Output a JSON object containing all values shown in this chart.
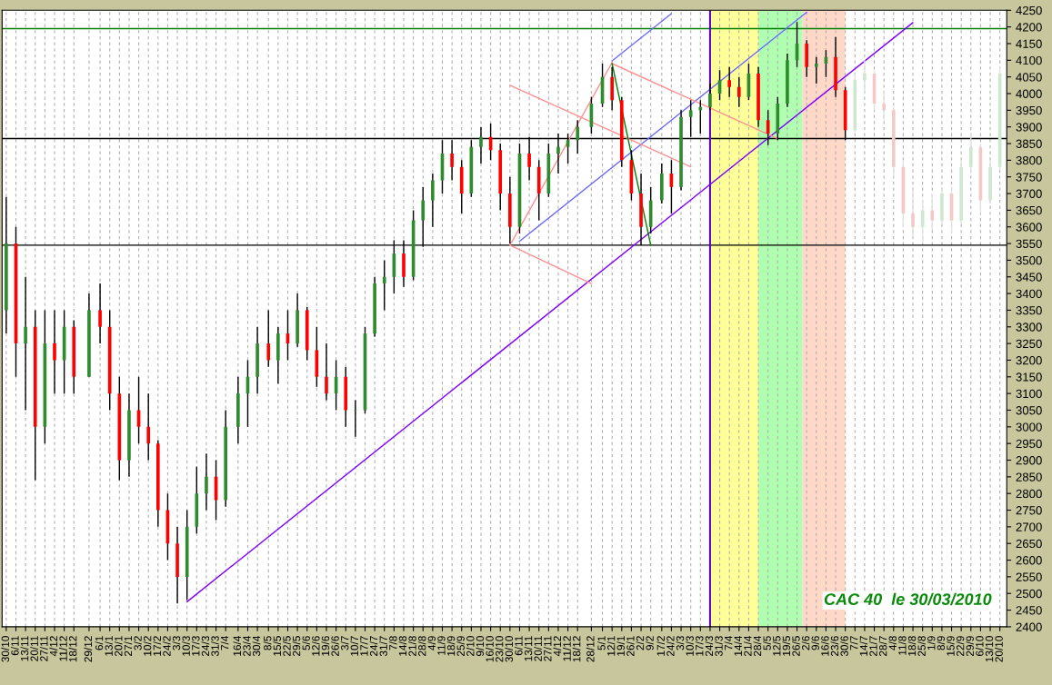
{
  "chart_data": {
    "type": "candlestick",
    "x": [
      "2008-10-30",
      "2008-11-06",
      "2008-11-13",
      "2008-11-20",
      "2008-11-27",
      "2008-12-04",
      "2008-12-11",
      "2008-12-18",
      "2008-12-29",
      "2009-01-06",
      "2009-01-13",
      "2009-01-20",
      "2009-01-27",
      "2009-02-03",
      "2009-02-10",
      "2009-02-17",
      "2009-02-24",
      "2009-03-03",
      "2009-03-10",
      "2009-03-17",
      "2009-03-24",
      "2009-03-31",
      "2009-04-07",
      "2009-04-16",
      "2009-04-23",
      "2009-04-30",
      "2009-05-08",
      "2009-05-15",
      "2009-05-22",
      "2009-05-29",
      "2009-06-05",
      "2009-06-12",
      "2009-06-19",
      "2009-06-26",
      "2009-07-03",
      "2009-07-10",
      "2009-07-17",
      "2009-07-24",
      "2009-07-31",
      "2009-08-07",
      "2009-08-14",
      "2009-08-21",
      "2009-08-28",
      "2009-09-04",
      "2009-09-11",
      "2009-09-18",
      "2009-09-25",
      "2009-10-02",
      "2009-10-09",
      "2009-10-16",
      "2009-10-23",
      "2009-10-30",
      "2009-11-06",
      "2009-11-13",
      "2009-11-20",
      "2009-11-27",
      "2009-12-04",
      "2009-12-11",
      "2009-12-18",
      "2009-12-28",
      "2010-01-05",
      "2010-01-12",
      "2010-01-19",
      "2010-01-26",
      "2010-02-02",
      "2010-02-09",
      "2010-02-17",
      "2010-02-24",
      "2010-03-03",
      "2010-03-10",
      "2010-03-17",
      "2010-03-24",
      "2010-03-31",
      "2010-04-07",
      "2010-04-14",
      "2010-04-21",
      "2010-04-28",
      "2010-05-05",
      "2010-05-12",
      "2010-05-19",
      "2010-05-26",
      "2010-06-02",
      "2010-06-09",
      "2010-06-16",
      "2010-06-23",
      "2010-06-30"
    ],
    "series": [
      {
        "color": "#000000",
        "colors": [
          "#2e8b2e",
          "#ff0000",
          "#2e8b2e",
          "#ff0000",
          "#2e8b2e",
          "#ff0000",
          "#2e8b2e",
          "#ff0000",
          "#2e8b2e",
          "#ff0000",
          "#ff0000",
          "#ff0000",
          "#2e8b2e",
          "#ff0000",
          "#ff0000",
          "#ff0000",
          "#ff0000",
          "#ff0000",
          "#2e8b2e",
          "#2e8b2e",
          "#2e8b2e",
          "#ff0000",
          "#2e8b2e",
          "#2e8b2e",
          "#2e8b2e",
          "#2e8b2e",
          "#ff0000",
          "#2e8b2e",
          "#ff0000",
          "#2e8b2e",
          "#ff0000",
          "#ff0000",
          "#ff0000",
          "#2e8b2e",
          "#ff0000",
          "#2e8b2e",
          "#2e8b2e",
          "#2e8b2e",
          "#2e8b2e",
          "#2e8b2e",
          "#ff0000",
          "#2e8b2e",
          "#2e8b2e",
          "#2e8b2e",
          "#2e8b2e",
          "#ff0000",
          "#ff0000",
          "#2e8b2e",
          "#2e8b2e",
          "#ff0000",
          "#ff0000",
          "#ff0000",
          "#2e8b2e",
          "#ff0000",
          "#ff0000",
          "#2e8b2e",
          "#2e8b2e",
          "#2e8b2e",
          "#2e8b2e",
          "#2e8b2e",
          "#2e8b2e",
          "#ff0000",
          "#ff0000",
          "#ff0000",
          "#ff0000",
          "#2e8b2e",
          "#2e8b2e",
          "#ff0000",
          "#2e8b2e",
          "#2e8b2e",
          "#2e8b2e",
          "#2e8b2e",
          "#2e8b2e",
          "#ff0000",
          "#ff0000",
          "#2e8b2e",
          "#ff0000",
          "#ff0000",
          "#2e8b2e",
          "#2e8b2e",
          "#2e8b2e",
          "#ff0000",
          "#2e8b2e",
          "#2e8b2e",
          "#ff0000",
          "#ff0000"
        ],
        "ohlc": [
          [
            3350,
            3690,
            3280,
            3550
          ],
          [
            3550,
            3600,
            3150,
            3250
          ],
          [
            3250,
            3450,
            3050,
            3300
          ],
          [
            3300,
            3350,
            2840,
            3000
          ],
          [
            3000,
            3350,
            2950,
            3250
          ],
          [
            3250,
            3350,
            3100,
            3200
          ],
          [
            3200,
            3350,
            3100,
            3300
          ],
          [
            3300,
            3320,
            3100,
            3150
          ],
          [
            3150,
            3400,
            3150,
            3350
          ],
          [
            3350,
            3430,
            3250,
            3300
          ],
          [
            3300,
            3350,
            3050,
            3100
          ],
          [
            3100,
            3150,
            2840,
            2900
          ],
          [
            2900,
            3100,
            2850,
            3050
          ],
          [
            3050,
            3150,
            2950,
            3000
          ],
          [
            3000,
            3100,
            2900,
            2950
          ],
          [
            2950,
            2960,
            2700,
            2750
          ],
          [
            2750,
            2800,
            2600,
            2650
          ],
          [
            2650,
            2700,
            2470,
            2550
          ],
          [
            2550,
            2750,
            2480,
            2700
          ],
          [
            2700,
            2880,
            2680,
            2800
          ],
          [
            2800,
            2920,
            2750,
            2850
          ],
          [
            2850,
            2900,
            2720,
            2780
          ],
          [
            2780,
            3050,
            2760,
            3000
          ],
          [
            3000,
            3150,
            2950,
            3100
          ],
          [
            3100,
            3200,
            3000,
            3150
          ],
          [
            3150,
            3300,
            3100,
            3250
          ],
          [
            3250,
            3350,
            3180,
            3200
          ],
          [
            3200,
            3300,
            3130,
            3280
          ],
          [
            3280,
            3350,
            3200,
            3250
          ],
          [
            3250,
            3400,
            3240,
            3350
          ],
          [
            3350,
            3360,
            3200,
            3230
          ],
          [
            3230,
            3300,
            3120,
            3150
          ],
          [
            3150,
            3250,
            3080,
            3100
          ],
          [
            3100,
            3200,
            3050,
            3150
          ],
          [
            3150,
            3180,
            3000,
            3050
          ],
          [
            3050,
            3080,
            2970,
            3050
          ],
          [
            3050,
            3300,
            3040,
            3280
          ],
          [
            3280,
            3450,
            3270,
            3430
          ],
          [
            3430,
            3500,
            3350,
            3450
          ],
          [
            3450,
            3560,
            3400,
            3520
          ],
          [
            3520,
            3560,
            3420,
            3450
          ],
          [
            3450,
            3650,
            3440,
            3620
          ],
          [
            3620,
            3720,
            3540,
            3680
          ],
          [
            3680,
            3760,
            3600,
            3740
          ],
          [
            3740,
            3860,
            3700,
            3820
          ],
          [
            3820,
            3860,
            3740,
            3780
          ],
          [
            3780,
            3800,
            3640,
            3700
          ],
          [
            3700,
            3860,
            3690,
            3840
          ],
          [
            3840,
            3900,
            3790,
            3870
          ],
          [
            3870,
            3910,
            3800,
            3830
          ],
          [
            3830,
            3850,
            3650,
            3700
          ],
          [
            3700,
            3750,
            3550,
            3600
          ],
          [
            3600,
            3850,
            3580,
            3820
          ],
          [
            3820,
            3870,
            3740,
            3780
          ],
          [
            3780,
            3800,
            3620,
            3700
          ],
          [
            3700,
            3850,
            3690,
            3820
          ],
          [
            3820,
            3880,
            3760,
            3840
          ],
          [
            3840,
            3880,
            3790,
            3860
          ],
          [
            3860,
            3920,
            3820,
            3900
          ],
          [
            3900,
            3990,
            3880,
            3970
          ],
          [
            3970,
            4090,
            3960,
            4050
          ],
          [
            4050,
            4080,
            3950,
            3980
          ],
          [
            3980,
            3990,
            3780,
            3800
          ],
          [
            3800,
            3830,
            3680,
            3700
          ],
          [
            3700,
            3760,
            3545,
            3600
          ],
          [
            3600,
            3720,
            3580,
            3680
          ],
          [
            3680,
            3790,
            3670,
            3760
          ],
          [
            3760,
            3800,
            3640,
            3720
          ],
          [
            3720,
            3950,
            3710,
            3930
          ],
          [
            3930,
            3980,
            3870,
            3950
          ],
          [
            3950,
            3980,
            3880,
            3960
          ],
          [
            3960,
            4030,
            3950,
            4000
          ],
          [
            4000,
            4070,
            3980,
            4040
          ],
          [
            4040,
            4080,
            3990,
            4020
          ],
          [
            4020,
            4050,
            3960,
            3990
          ],
          [
            3990,
            4090,
            3980,
            4060
          ],
          [
            4060,
            4080,
            3900,
            3920
          ],
          [
            3920,
            3950,
            3845,
            3880
          ],
          [
            3880,
            3990,
            3860,
            3970
          ],
          [
            3970,
            4120,
            3960,
            4100
          ],
          [
            4100,
            4215,
            4080,
            4150
          ],
          [
            4150,
            4160,
            4050,
            4080
          ],
          [
            4080,
            4110,
            4030,
            4090
          ],
          [
            4090,
            4130,
            4050,
            4110
          ],
          [
            4110,
            4170,
            3990,
            4010
          ],
          [
            4010,
            4020,
            3860,
            3890
          ]
        ]
      },
      {
        "color": "#e2e2e2",
        "x": [
          "2010-07-07",
          "2010-07-14",
          "2010-07-21",
          "2010-07-28",
          "2010-08-04",
          "2010-08-11",
          "2010-08-18",
          "2010-08-25",
          "2010-09-01",
          "2010-09-08",
          "2010-09-15",
          "2010-09-22",
          "2010-09-29",
          "2010-10-06",
          "2010-10-13",
          "2010-10-20"
        ],
        "colors": [
          "#cfe6cf",
          "#cfe6cf",
          "#f5c8c8",
          "#f5c8c8",
          "#f5c8c8",
          "#f5c8c8",
          "#f5c8c8",
          "#cfe6cf",
          "#f5c8c8",
          "#cfe6cf",
          "#f5c8c8",
          "#cfe6cf",
          "#cfe6cf",
          "#f5c8c8",
          "#cfe6cf",
          "#cfe6cf"
        ],
        "ohlc": [
          [
            3890,
            4060,
            3880,
            4040
          ],
          [
            4040,
            4100,
            4000,
            4060
          ],
          [
            4060,
            4070,
            3950,
            3970
          ],
          [
            3970,
            4010,
            3920,
            3950
          ],
          [
            3950,
            3960,
            3750,
            3780
          ],
          [
            3780,
            3800,
            3600,
            3640
          ],
          [
            3640,
            3720,
            3570,
            3600
          ],
          [
            3600,
            3680,
            3550,
            3650
          ],
          [
            3650,
            3700,
            3590,
            3620
          ],
          [
            3620,
            3720,
            3610,
            3700
          ],
          [
            3700,
            3720,
            3580,
            3620
          ],
          [
            3620,
            3800,
            3610,
            3780
          ],
          [
            3780,
            3880,
            3760,
            3840
          ],
          [
            3840,
            3850,
            3640,
            3680
          ],
          [
            3680,
            3800,
            3670,
            3780
          ],
          [
            3780,
            4080,
            3770,
            4060
          ]
        ]
      },
      {
        "type": "line",
        "color": "#8000ff",
        "x": [
          "2009-03-10",
          "2010-08-18"
        ],
        "values": [
          2475,
          4213
        ]
      },
      {
        "type": "line",
        "color": "#6a6aff",
        "x": [
          "2009-11-06",
          "2010-06-02"
        ],
        "values": [
          3557,
          4244
        ]
      },
      {
        "type": "line",
        "color": "#6a6aff",
        "x": [
          "2010-01-12",
          "2010-02-24"
        ],
        "values": [
          4098,
          4240
        ]
      },
      {
        "type": "line",
        "color": "#ff9090",
        "x": [
          "2009-10-30",
          "2010-01-12"
        ],
        "values": [
          3545,
          4093
        ]
      },
      {
        "type": "line",
        "color": "#ff9090",
        "x": [
          "2010-01-12",
          "2010-05-12"
        ],
        "values": [
          4090,
          3865
        ]
      },
      {
        "type": "line",
        "color": "#ff9090",
        "x": [
          "2009-10-30",
          "2010-03-10"
        ],
        "values": [
          4025,
          3780
        ]
      },
      {
        "type": "line",
        "color": "#ff9090",
        "x": [
          "2009-10-30",
          "2009-12-28"
        ],
        "values": [
          3545,
          3430
        ]
      },
      {
        "type": "line",
        "color": "#008000",
        "x": [
          "2010-01-12",
          "2010-02-09"
        ],
        "values": [
          4090,
          3545
        ]
      }
    ],
    "xlim": [
      "2008-10-27",
      "2010-10-25"
    ],
    "xticks": [
      {
        "value": "2008-10-30",
        "label": "30/10"
      },
      {
        "value": "2008-11-06",
        "label": "6/11"
      },
      {
        "value": "2008-11-13",
        "label": "13/11"
      },
      {
        "value": "2008-11-20",
        "label": "20/11"
      },
      {
        "value": "2008-11-27",
        "label": "27/11"
      },
      {
        "value": "2008-12-04",
        "label": "4/12"
      },
      {
        "value": "2008-12-11",
        "label": "11/12"
      },
      {
        "value": "2008-12-18",
        "label": "18/12"
      },
      {
        "value": "2008-12-29",
        "label": "29/12"
      },
      {
        "value": "2009-01-06",
        "label": "6/1"
      },
      {
        "value": "2009-01-13",
        "label": "13/1"
      },
      {
        "value": "2009-01-20",
        "label": "20/1"
      },
      {
        "value": "2009-01-27",
        "label": "27/1"
      },
      {
        "value": "2009-02-03",
        "label": "3/2"
      },
      {
        "value": "2009-02-10",
        "label": "10/2"
      },
      {
        "value": "2009-02-17",
        "label": "17/2"
      },
      {
        "value": "2009-02-24",
        "label": "24/2"
      },
      {
        "value": "2009-03-03",
        "label": "3/3"
      },
      {
        "value": "2009-03-10",
        "label": "10/3"
      },
      {
        "value": "2009-03-17",
        "label": "17/3"
      },
      {
        "value": "2009-03-24",
        "label": "24/3"
      },
      {
        "value": "2009-03-31",
        "label": "31/3"
      },
      {
        "value": "2009-04-07",
        "label": "7/4"
      },
      {
        "value": "2009-04-16",
        "label": "16/4"
      },
      {
        "value": "2009-04-23",
        "label": "23/4"
      },
      {
        "value": "2009-04-30",
        "label": "30/4"
      },
      {
        "value": "2009-05-08",
        "label": "8/5"
      },
      {
        "value": "2009-05-15",
        "label": "15/5"
      },
      {
        "value": "2009-05-22",
        "label": "22/5"
      },
      {
        "value": "2009-05-29",
        "label": "29/5"
      },
      {
        "value": "2009-06-05",
        "label": "5/6"
      },
      {
        "value": "2009-06-12",
        "label": "12/6"
      },
      {
        "value": "2009-06-19",
        "label": "19/6"
      },
      {
        "value": "2009-06-26",
        "label": "26/6"
      },
      {
        "value": "2009-07-03",
        "label": "3/7"
      },
      {
        "value": "2009-07-10",
        "label": "10/7"
      },
      {
        "value": "2009-07-17",
        "label": "17/7"
      },
      {
        "value": "2009-07-24",
        "label": "24/7"
      },
      {
        "value": "2009-07-31",
        "label": "31/7"
      },
      {
        "value": "2009-08-07",
        "label": "7/8"
      },
      {
        "value": "2009-08-14",
        "label": "14/8"
      },
      {
        "value": "2009-08-21",
        "label": "21/8"
      },
      {
        "value": "2009-08-28",
        "label": "28/8"
      },
      {
        "value": "2009-09-04",
        "label": "4/9"
      },
      {
        "value": "2009-09-11",
        "label": "11/9"
      },
      {
        "value": "2009-09-18",
        "label": "18/9"
      },
      {
        "value": "2009-09-25",
        "label": "25/9"
      },
      {
        "value": "2009-10-02",
        "label": "2/10"
      },
      {
        "value": "2009-10-09",
        "label": "9/10"
      },
      {
        "value": "2009-10-16",
        "label": "16/10"
      },
      {
        "value": "2009-10-23",
        "label": "23/10"
      },
      {
        "value": "2009-10-30",
        "label": "30/10"
      },
      {
        "value": "2009-11-06",
        "label": "6/11"
      },
      {
        "value": "2009-11-13",
        "label": "13/11"
      },
      {
        "value": "2009-11-20",
        "label": "20/11"
      },
      {
        "value": "2009-11-27",
        "label": "27/11"
      },
      {
        "value": "2009-12-04",
        "label": "4/12"
      },
      {
        "value": "2009-12-11",
        "label": "11/12"
      },
      {
        "value": "2009-12-18",
        "label": "18/12"
      },
      {
        "value": "2009-12-28",
        "label": "28/12"
      },
      {
        "value": "2010-01-05",
        "label": "5/1"
      },
      {
        "value": "2010-01-12",
        "label": "12/1"
      },
      {
        "value": "2010-01-19",
        "label": "19/1"
      },
      {
        "value": "2010-01-26",
        "label": "26/1"
      },
      {
        "value": "2010-02-02",
        "label": "2/2"
      },
      {
        "value": "2010-02-09",
        "label": "9/2"
      },
      {
        "value": "2010-02-17",
        "label": "17/2"
      },
      {
        "value": "2010-02-24",
        "label": "24/2"
      },
      {
        "value": "2010-03-03",
        "label": "3/3"
      },
      {
        "value": "2010-03-10",
        "label": "10/3"
      },
      {
        "value": "2010-03-17",
        "label": "17/3"
      },
      {
        "value": "2010-03-24",
        "label": "24/3"
      },
      {
        "value": "2010-03-31",
        "label": "31/3"
      },
      {
        "value": "2010-04-07",
        "label": "7/4"
      },
      {
        "value": "2010-04-14",
        "label": "14/4"
      },
      {
        "value": "2010-04-21",
        "label": "21/4"
      },
      {
        "value": "2010-04-28",
        "label": "28/4"
      },
      {
        "value": "2010-05-05",
        "label": "5/5"
      },
      {
        "value": "2010-05-12",
        "label": "12/5"
      },
      {
        "value": "2010-05-19",
        "label": "19/5"
      },
      {
        "value": "2010-05-26",
        "label": "26/5"
      },
      {
        "value": "2010-06-02",
        "label": "2/6"
      },
      {
        "value": "2010-06-09",
        "label": "9/6"
      },
      {
        "value": "2010-06-16",
        "label": "16/6"
      },
      {
        "value": "2010-06-23",
        "label": "23/6"
      },
      {
        "value": "2010-06-30",
        "label": "30/6"
      },
      {
        "value": "2010-07-07",
        "label": "7/7"
      },
      {
        "value": "2010-07-14",
        "label": "14/7"
      },
      {
        "value": "2010-07-21",
        "label": "21/7"
      },
      {
        "value": "2010-07-28",
        "label": "28/7"
      },
      {
        "value": "2010-08-04",
        "label": "4/8"
      },
      {
        "value": "2010-08-11",
        "label": "11/8"
      },
      {
        "value": "2010-08-18",
        "label": "18/8"
      },
      {
        "value": "2010-08-25",
        "label": "25/8"
      },
      {
        "value": "2010-09-01",
        "label": "1/9"
      },
      {
        "value": "2010-09-08",
        "label": "8/9"
      },
      {
        "value": "2010-09-15",
        "label": "15/9"
      },
      {
        "value": "2010-09-22",
        "label": "22/9"
      },
      {
        "value": "2010-09-29",
        "label": "29/9"
      },
      {
        "value": "2010-10-06",
        "label": "6/10"
      },
      {
        "value": "2010-10-13",
        "label": "13/10"
      },
      {
        "value": "2010-10-20",
        "label": "20/10"
      }
    ],
    "ylim": [
      2400,
      4250
    ],
    "yticks": [
      2400,
      2450,
      2500,
      2550,
      2600,
      2650,
      2700,
      2750,
      2800,
      2850,
      2900,
      2950,
      3000,
      3050,
      3100,
      3150,
      3200,
      3250,
      3300,
      3350,
      3400,
      3450,
      3500,
      3550,
      3600,
      3650,
      3700,
      3750,
      3800,
      3850,
      3900,
      3950,
      4000,
      4050,
      4100,
      4150,
      4200,
      4250
    ],
    "ref_lines": [
      {
        "axis": "y",
        "value": 4195,
        "color": "#008000"
      },
      {
        "axis": "y",
        "value": 3865,
        "color": "#000000"
      },
      {
        "axis": "y",
        "value": 3545,
        "color": "#000000"
      },
      {
        "axis": "x",
        "value": "2010-03-24",
        "color": "#6000c0"
      }
    ],
    "bands": [
      {
        "axis": "x",
        "from": "2010-03-24",
        "to": "2010-04-28",
        "color": "#ffff99"
      },
      {
        "axis": "x",
        "from": "2010-04-28",
        "to": "2010-05-30",
        "color": "#b0ffb0"
      },
      {
        "axis": "x",
        "from": "2010-05-30",
        "to": "2010-06-30",
        "color": "#ffd8c8"
      }
    ],
    "grid": "x",
    "annotations": [
      "CAC 40  le 30/03/2010"
    ]
  }
}
